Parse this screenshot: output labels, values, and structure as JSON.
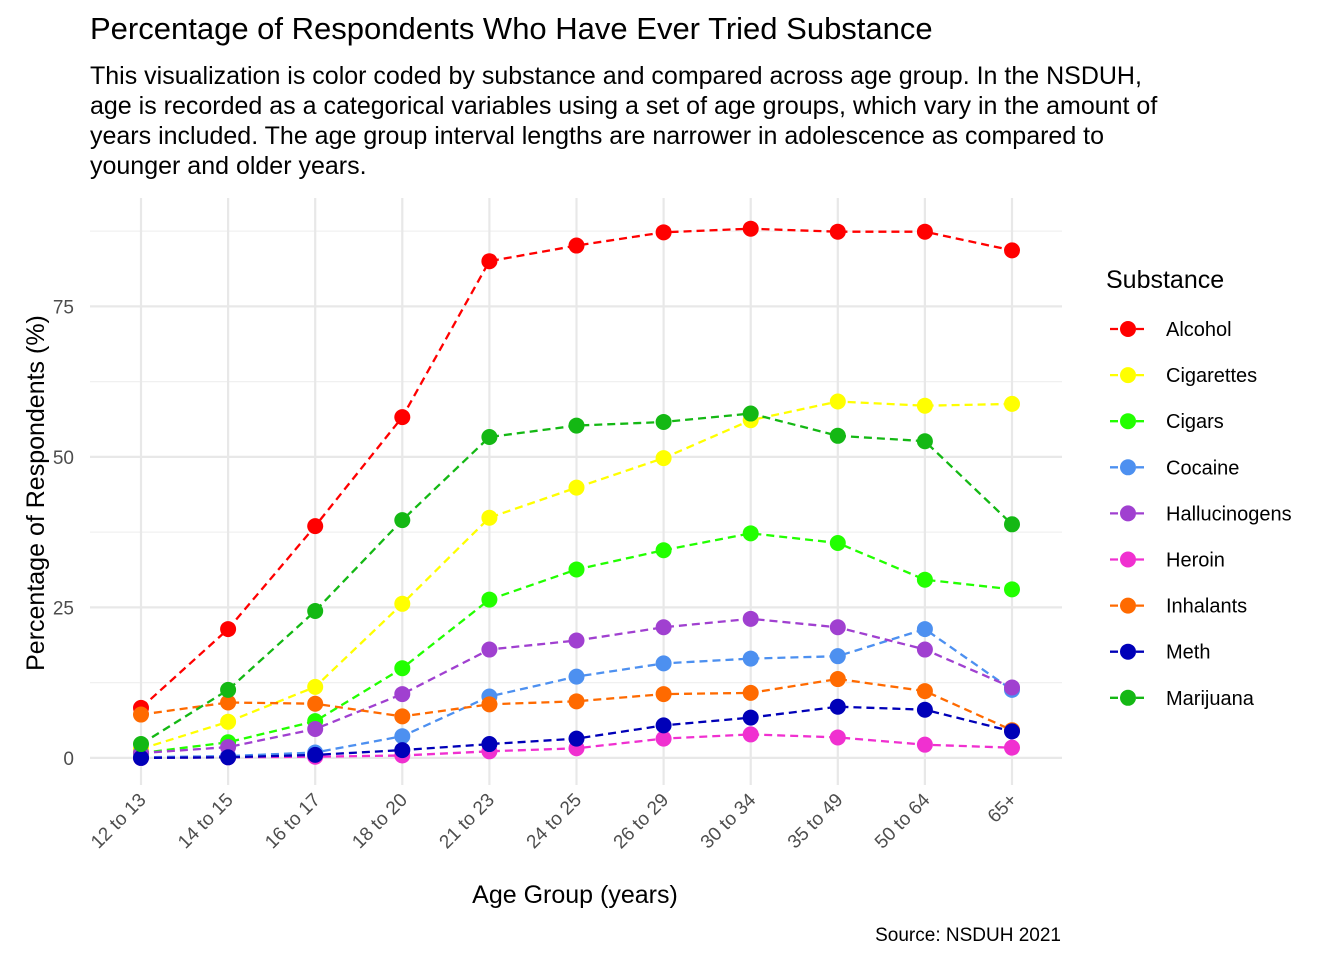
{
  "chart_data": {
    "type": "line",
    "title": "Percentage of Respondents Who Have Ever Tried Substance",
    "subtitle": [
      "This visualization is color coded by substance and compared across age group. In the NSDUH,",
      "age is recorded as a categorical variables using a set of age groups, which vary in the amount of",
      "years included. The age group interval lengths are narrower in adolescence as compared to",
      "younger and older years."
    ],
    "xlabel": "Age Group (years)",
    "ylabel": "Percentage of Respondents (%)",
    "caption": "Source: NSDUH 2021",
    "legend_title": "Substance",
    "legend_position": "right",
    "grid": true,
    "ylim": [
      -4.5,
      93
    ],
    "y_ticks": [
      0,
      25,
      50,
      75
    ],
    "y_tick_labels": [
      "0",
      "25",
      "50",
      "75"
    ],
    "categories": [
      "12 to 13",
      "14 to 15",
      "16 to 17",
      "18 to 20",
      "21 to 23",
      "24 to 25",
      "26 to 29",
      "30 to 34",
      "35 to 49",
      "50 to 64",
      "65+"
    ],
    "series": [
      {
        "name": "Alcohol",
        "color": "#FF0000",
        "values": [
          8.3,
          21.4,
          38.5,
          56.6,
          82.5,
          85.1,
          87.3,
          87.9,
          87.4,
          87.4,
          84.3
        ]
      },
      {
        "name": "Cigarettes",
        "color": "#FFFF00",
        "values": [
          1.5,
          6.0,
          11.8,
          25.6,
          39.9,
          44.9,
          49.8,
          56.1,
          59.2,
          58.5,
          58.8
        ]
      },
      {
        "name": "Cigars",
        "color": "#22FF00",
        "values": [
          0.8,
          2.6,
          6.1,
          14.9,
          26.3,
          31.3,
          34.5,
          37.3,
          35.7,
          29.6,
          28.0
        ]
      },
      {
        "name": "Cocaine",
        "color": "#4D90F0",
        "values": [
          0.1,
          0.3,
          0.9,
          3.6,
          10.2,
          13.5,
          15.7,
          16.5,
          16.9,
          21.4,
          11.3
        ]
      },
      {
        "name": "Hallucinogens",
        "color": "#A040D0",
        "values": [
          0.8,
          1.8,
          4.8,
          10.6,
          18.0,
          19.5,
          21.7,
          23.1,
          21.7,
          18.0,
          11.7
        ]
      },
      {
        "name": "Heroin",
        "color": "#F030D0",
        "values": [
          0.0,
          0.1,
          0.2,
          0.4,
          1.1,
          1.6,
          3.2,
          3.9,
          3.4,
          2.2,
          1.7
        ]
      },
      {
        "name": "Inhalants",
        "color": "#FF6A00",
        "values": [
          7.2,
          9.2,
          9.0,
          6.9,
          8.9,
          9.4,
          10.6,
          10.8,
          13.1,
          11.1,
          4.6
        ]
      },
      {
        "name": "Meth",
        "color": "#0000B8",
        "values": [
          0.0,
          0.1,
          0.5,
          1.3,
          2.3,
          3.2,
          5.4,
          6.7,
          8.5,
          8.0,
          4.4
        ]
      },
      {
        "name": "Marijuana",
        "color": "#14B814",
        "values": [
          2.3,
          11.3,
          24.4,
          39.5,
          53.3,
          55.2,
          55.8,
          57.2,
          53.5,
          52.6,
          38.8
        ]
      }
    ]
  }
}
